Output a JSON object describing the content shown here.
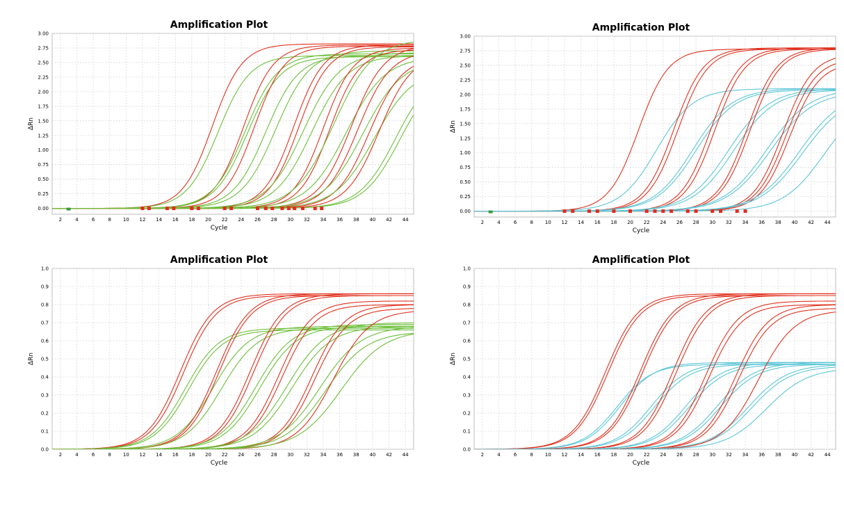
{
  "colors": {
    "red": "#e0301e",
    "green": "#6cbf3a",
    "cyan": "#5bc6d6",
    "grid": "#d9d9d9",
    "marker_red": "#e8281c",
    "marker_green": "#3a9a3a"
  },
  "chart_data": [
    {
      "type": "line",
      "title": "Amplification Plot",
      "xlabel": "Cycle",
      "ylabel": "ΔRn",
      "xlim": [
        1,
        45
      ],
      "ylim": [
        -0.1,
        3.0
      ],
      "xticks": [
        2,
        4,
        6,
        8,
        10,
        12,
        14,
        16,
        18,
        20,
        22,
        24,
        26,
        28,
        30,
        32,
        34,
        36,
        38,
        40,
        42,
        44
      ],
      "yticks": [
        0.0,
        0.25,
        0.5,
        0.75,
        1.0,
        1.25,
        1.5,
        1.75,
        2.0,
        2.25,
        2.5,
        2.75,
        3.0
      ],
      "ytick_labels": [
        "0.00",
        "0.25",
        "0.50",
        "0.75",
        "1.00",
        "1.25",
        "1.50",
        "1.75",
        "2.00",
        "2.25",
        "2.50",
        "2.75",
        "3.00"
      ],
      "grid": true,
      "threshold_markers": [
        12,
        12.8,
        15,
        15.8,
        18,
        18.8,
        22,
        22.8,
        26,
        27,
        27.8,
        29,
        29.8,
        30.5,
        31.5,
        33,
        33.8
      ],
      "curves": [
        {
          "color": "red",
          "ct": 20.5,
          "plateau": 2.82,
          "k": 0.55
        },
        {
          "color": "green",
          "ct": 21.2,
          "plateau": 2.62,
          "k": 0.52
        },
        {
          "color": "red",
          "ct": 24.3,
          "plateau": 2.8,
          "k": 0.55
        },
        {
          "color": "green",
          "ct": 24.5,
          "plateau": 2.65,
          "k": 0.5
        },
        {
          "color": "green",
          "ct": 24.8,
          "plateau": 2.6,
          "k": 0.5
        },
        {
          "color": "red",
          "ct": 25.6,
          "plateau": 2.78,
          "k": 0.55
        },
        {
          "color": "green",
          "ct": 27.0,
          "plateau": 2.62,
          "k": 0.5
        },
        {
          "color": "green",
          "ct": 28.2,
          "plateau": 2.7,
          "k": 0.48
        },
        {
          "color": "red",
          "ct": 30.4,
          "plateau": 2.8,
          "k": 0.55
        },
        {
          "color": "red",
          "ct": 31.0,
          "plateau": 2.77,
          "k": 0.55
        },
        {
          "color": "green",
          "ct": 31.6,
          "plateau": 2.67,
          "k": 0.45
        },
        {
          "color": "green",
          "ct": 32.6,
          "plateau": 2.62,
          "k": 0.45
        },
        {
          "color": "red",
          "ct": 34.0,
          "plateau": 2.75,
          "k": 0.55
        },
        {
          "color": "red",
          "ct": 34.8,
          "plateau": 2.72,
          "k": 0.55
        },
        {
          "color": "green",
          "ct": 35.3,
          "plateau": 2.9,
          "k": 0.42
        },
        {
          "color": "green",
          "ct": 36.8,
          "plateau": 2.6,
          "k": 0.42
        },
        {
          "color": "red",
          "ct": 37.4,
          "plateau": 2.8,
          "k": 0.5
        },
        {
          "color": "red",
          "ct": 38.2,
          "plateau": 2.7,
          "k": 0.5
        },
        {
          "color": "green",
          "ct": 38.8,
          "plateau": 2.55,
          "k": 0.42
        },
        {
          "color": "red",
          "ct": 39.6,
          "plateau": 2.6,
          "k": 0.5
        },
        {
          "color": "green",
          "ct": 40.2,
          "plateau": 2.4,
          "k": 0.42
        },
        {
          "color": "red",
          "ct": 40.8,
          "plateau": 2.65,
          "k": 0.5
        },
        {
          "color": "green",
          "ct": 42.8,
          "plateau": 2.4,
          "k": 0.45
        },
        {
          "color": "green",
          "ct": 43.3,
          "plateau": 2.35,
          "k": 0.45
        }
      ]
    },
    {
      "type": "line",
      "title": "Amplification Plot",
      "xlabel": "Cycle",
      "ylabel": "ΔRn",
      "xlim": [
        1,
        45
      ],
      "ylim": [
        -0.1,
        3.0
      ],
      "xticks": [
        2,
        4,
        6,
        8,
        10,
        12,
        14,
        16,
        18,
        20,
        22,
        24,
        26,
        28,
        30,
        32,
        34,
        36,
        38,
        40,
        42,
        44
      ],
      "yticks": [
        0.0,
        0.25,
        0.5,
        0.75,
        1.0,
        1.25,
        1.5,
        1.75,
        2.0,
        2.25,
        2.5,
        2.75,
        3.0
      ],
      "ytick_labels": [
        "0.00",
        "0.25",
        "0.50",
        "0.75",
        "1.00",
        "1.25",
        "1.50",
        "1.75",
        "2.00",
        "2.25",
        "2.50",
        "2.75",
        "3.00"
      ],
      "grid": true,
      "threshold_markers": [
        12,
        13,
        15,
        16,
        18,
        20,
        22,
        23,
        24,
        25,
        27,
        28,
        30,
        31,
        33,
        34
      ],
      "curves": [
        {
          "color": "red",
          "ct": 21.0,
          "plateau": 2.78,
          "k": 0.55
        },
        {
          "color": "cyan",
          "ct": 23.2,
          "plateau": 2.1,
          "k": 0.45
        },
        {
          "color": "red",
          "ct": 25.3,
          "plateau": 2.8,
          "k": 0.55
        },
        {
          "color": "red",
          "ct": 25.8,
          "plateau": 2.78,
          "k": 0.55
        },
        {
          "color": "cyan",
          "ct": 27.6,
          "plateau": 2.1,
          "k": 0.42
        },
        {
          "color": "cyan",
          "ct": 28.0,
          "plateau": 2.08,
          "k": 0.42
        },
        {
          "color": "red",
          "ct": 29.8,
          "plateau": 2.8,
          "k": 0.55
        },
        {
          "color": "red",
          "ct": 30.3,
          "plateau": 2.78,
          "k": 0.55
        },
        {
          "color": "cyan",
          "ct": 32.0,
          "plateau": 2.1,
          "k": 0.4
        },
        {
          "color": "cyan",
          "ct": 32.6,
          "plateau": 2.08,
          "k": 0.4
        },
        {
          "color": "red",
          "ct": 34.2,
          "plateau": 2.8,
          "k": 0.55
        },
        {
          "color": "red",
          "ct": 34.6,
          "plateau": 2.78,
          "k": 0.55
        },
        {
          "color": "cyan",
          "ct": 36.6,
          "plateau": 2.1,
          "k": 0.38
        },
        {
          "color": "cyan",
          "ct": 37.0,
          "plateau": 2.05,
          "k": 0.38
        },
        {
          "color": "red",
          "ct": 38.6,
          "plateau": 2.7,
          "k": 0.55
        },
        {
          "color": "red",
          "ct": 39.0,
          "plateau": 2.62,
          "k": 0.55
        },
        {
          "color": "red",
          "ct": 39.4,
          "plateau": 2.55,
          "k": 0.55
        },
        {
          "color": "cyan",
          "ct": 40.6,
          "plateau": 2.05,
          "k": 0.38
        },
        {
          "color": "cyan",
          "ct": 41.0,
          "plateau": 2.0,
          "k": 0.38
        },
        {
          "color": "cyan",
          "ct": 43.6,
          "plateau": 1.95,
          "k": 0.4
        }
      ]
    },
    {
      "type": "line",
      "title": "Amplification Plot",
      "xlabel": "Cycle",
      "ylabel": "ΔRn",
      "xlim": [
        1,
        45
      ],
      "ylim": [
        0.0,
        1.0
      ],
      "xticks": [
        2,
        4,
        6,
        8,
        10,
        12,
        14,
        16,
        18,
        20,
        22,
        24,
        26,
        28,
        30,
        32,
        34,
        36,
        38,
        40,
        42,
        44
      ],
      "yticks": [
        0.0,
        0.1,
        0.2,
        0.3,
        0.4,
        0.5,
        0.6,
        0.7,
        0.8,
        0.9,
        1.0
      ],
      "ytick_labels": [
        "0.0",
        "0.1",
        "0.2",
        "0.3",
        "0.4",
        "0.5",
        "0.6",
        "0.7",
        "0.8",
        "0.9",
        "1.0"
      ],
      "grid": true,
      "threshold_markers": [],
      "curves": [
        {
          "color": "red",
          "ct": 16.6,
          "plateau": 0.86,
          "k": 0.5
        },
        {
          "color": "red",
          "ct": 17.0,
          "plateau": 0.85,
          "k": 0.5
        },
        {
          "color": "green",
          "ct": 17.2,
          "plateau": 0.67,
          "k": 0.48
        },
        {
          "color": "green",
          "ct": 17.6,
          "plateau": 0.66,
          "k": 0.48
        },
        {
          "color": "green",
          "ct": 20.6,
          "plateau": 0.68,
          "k": 0.45
        },
        {
          "color": "red",
          "ct": 21.0,
          "plateau": 0.86,
          "k": 0.5
        },
        {
          "color": "red",
          "ct": 21.3,
          "plateau": 0.85,
          "k": 0.5
        },
        {
          "color": "green",
          "ct": 21.6,
          "plateau": 0.67,
          "k": 0.45
        },
        {
          "color": "red",
          "ct": 25.1,
          "plateau": 0.86,
          "k": 0.5
        },
        {
          "color": "red",
          "ct": 25.5,
          "plateau": 0.85,
          "k": 0.5
        },
        {
          "color": "green",
          "ct": 25.8,
          "plateau": 0.69,
          "k": 0.45
        },
        {
          "color": "green",
          "ct": 26.3,
          "plateau": 0.68,
          "k": 0.45
        },
        {
          "color": "red",
          "ct": 28.6,
          "plateau": 0.82,
          "k": 0.5
        },
        {
          "color": "red",
          "ct": 29.0,
          "plateau": 0.8,
          "k": 0.5
        },
        {
          "color": "green",
          "ct": 29.6,
          "plateau": 0.7,
          "k": 0.42
        },
        {
          "color": "green",
          "ct": 30.2,
          "plateau": 0.68,
          "k": 0.42
        },
        {
          "color": "red",
          "ct": 32.6,
          "plateau": 0.8,
          "k": 0.5
        },
        {
          "color": "red",
          "ct": 33.0,
          "plateau": 0.78,
          "k": 0.5
        },
        {
          "color": "green",
          "ct": 33.6,
          "plateau": 0.68,
          "k": 0.4
        },
        {
          "color": "green",
          "ct": 34.3,
          "plateau": 0.65,
          "k": 0.4
        },
        {
          "color": "red",
          "ct": 35.2,
          "plateau": 0.77,
          "k": 0.45
        },
        {
          "color": "green",
          "ct": 36.2,
          "plateau": 0.66,
          "k": 0.38
        }
      ]
    },
    {
      "type": "line",
      "title": "Amplification Plot",
      "xlabel": "Cycle",
      "ylabel": "ΔRn",
      "xlim": [
        1,
        45
      ],
      "ylim": [
        0.0,
        1.0
      ],
      "xticks": [
        2,
        4,
        6,
        8,
        10,
        12,
        14,
        16,
        18,
        20,
        22,
        24,
        26,
        28,
        30,
        32,
        34,
        36,
        38,
        40,
        42,
        44
      ],
      "yticks": [
        0.0,
        0.1,
        0.2,
        0.3,
        0.4,
        0.5,
        0.6,
        0.7,
        0.8,
        0.9,
        1.0
      ],
      "ytick_labels": [
        "0.0",
        "0.1",
        "0.2",
        "0.3",
        "0.4",
        "0.5",
        "0.6",
        "0.7",
        "0.8",
        "0.9",
        "1.0"
      ],
      "grid": true,
      "threshold_markers": [],
      "curves": [
        {
          "color": "red",
          "ct": 17.0,
          "plateau": 0.86,
          "k": 0.5
        },
        {
          "color": "red",
          "ct": 17.3,
          "plateau": 0.85,
          "k": 0.5
        },
        {
          "color": "cyan",
          "ct": 18.4,
          "plateau": 0.47,
          "k": 0.48
        },
        {
          "color": "cyan",
          "ct": 18.8,
          "plateau": 0.48,
          "k": 0.48
        },
        {
          "color": "red",
          "ct": 21.2,
          "plateau": 0.86,
          "k": 0.5
        },
        {
          "color": "red",
          "ct": 21.5,
          "plateau": 0.85,
          "k": 0.5
        },
        {
          "color": "cyan",
          "ct": 22.6,
          "plateau": 0.48,
          "k": 0.46
        },
        {
          "color": "cyan",
          "ct": 23.0,
          "plateau": 0.47,
          "k": 0.46
        },
        {
          "color": "red",
          "ct": 25.2,
          "plateau": 0.86,
          "k": 0.5
        },
        {
          "color": "red",
          "ct": 25.6,
          "plateau": 0.85,
          "k": 0.5
        },
        {
          "color": "cyan",
          "ct": 26.8,
          "plateau": 0.48,
          "k": 0.45
        },
        {
          "color": "cyan",
          "ct": 27.2,
          "plateau": 0.47,
          "k": 0.45
        },
        {
          "color": "red",
          "ct": 29.2,
          "plateau": 0.82,
          "k": 0.5
        },
        {
          "color": "red",
          "ct": 29.6,
          "plateau": 0.8,
          "k": 0.5
        },
        {
          "color": "cyan",
          "ct": 30.6,
          "plateau": 0.48,
          "k": 0.44
        },
        {
          "color": "cyan",
          "ct": 31.0,
          "plateau": 0.47,
          "k": 0.44
        },
        {
          "color": "red",
          "ct": 32.8,
          "plateau": 0.8,
          "k": 0.5
        },
        {
          "color": "red",
          "ct": 33.2,
          "plateau": 0.78,
          "k": 0.5
        },
        {
          "color": "cyan",
          "ct": 34.4,
          "plateau": 0.47,
          "k": 0.42
        },
        {
          "color": "cyan",
          "ct": 34.8,
          "plateau": 0.46,
          "k": 0.42
        },
        {
          "color": "red",
          "ct": 35.6,
          "plateau": 0.77,
          "k": 0.45
        },
        {
          "color": "cyan",
          "ct": 36.6,
          "plateau": 0.45,
          "k": 0.4
        }
      ]
    }
  ]
}
